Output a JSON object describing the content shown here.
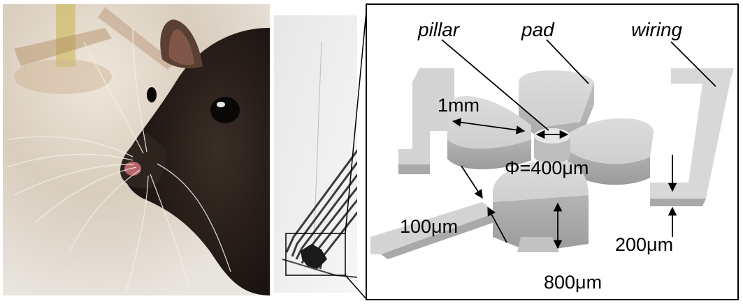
{
  "labels": {
    "pillar": "pillar",
    "pad": "pad",
    "wiring": "wiring",
    "dim_1mm": "1mm",
    "phi": "Φ=400μm",
    "dim_100": "100μm",
    "dim_200": "200μm",
    "dim_800": "800μm"
  },
  "colors": {
    "fur": "#2a211c",
    "background_photo": "#d8cfc3",
    "device_gray": "#c9c9c9",
    "device_shadow": "#9e9e9e",
    "frame": "#000000"
  }
}
